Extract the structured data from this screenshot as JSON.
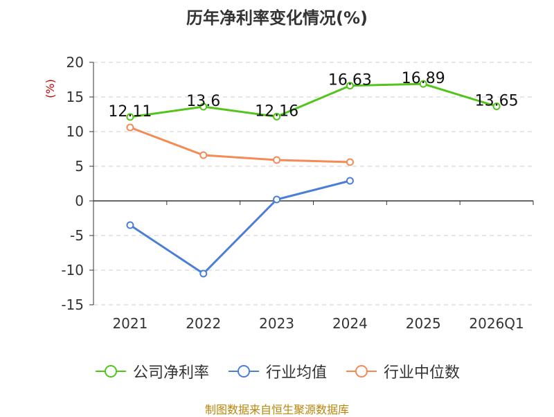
{
  "chart_data": {
    "type": "line",
    "title": "历年净利率变化情况(%)",
    "ylabel": "(%)",
    "xlabel": "",
    "categories": [
      "2021",
      "2022",
      "2023",
      "2024",
      "2025",
      "2026Q1"
    ],
    "ylim": [
      -15,
      20
    ],
    "yticks": [
      20,
      15,
      10,
      5,
      0,
      -5,
      -10,
      -15
    ],
    "grid": true,
    "legend_position": "bottom",
    "series": [
      {
        "name": "公司净利率",
        "color": "#52c41a",
        "values": [
          12.11,
          13.6,
          12.16,
          16.63,
          16.89,
          13.65
        ],
        "labels": [
          "12.11",
          "13.6",
          "12.16",
          "16.63",
          "16.89",
          "13.65"
        ]
      },
      {
        "name": "行业均值",
        "color": "#4a7fd8",
        "values": [
          -3.5,
          -10.5,
          0.2,
          2.9,
          null,
          null
        ]
      },
      {
        "name": "行业中位数",
        "color": "#f58a55",
        "values": [
          10.6,
          6.6,
          5.9,
          5.6,
          null,
          null
        ]
      }
    ]
  },
  "source": "制图数据来自恒生聚源数据库"
}
